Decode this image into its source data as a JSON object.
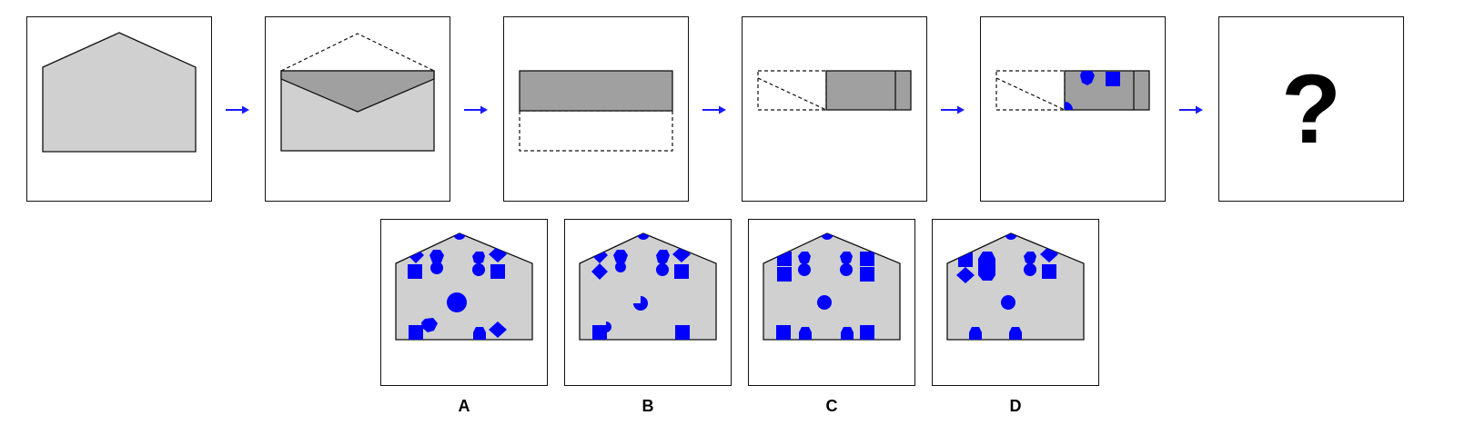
{
  "puzzle": {
    "question_mark": "?",
    "steps": [
      {
        "name": "step-1-unfolded-sheet"
      },
      {
        "name": "step-2-top-flap-folded-down"
      },
      {
        "name": "step-3-bottom-folded-up"
      },
      {
        "name": "step-4-folded-left-to-right"
      },
      {
        "name": "step-5-shapes-punched"
      },
      {
        "name": "step-6-answer"
      }
    ],
    "colors": {
      "paper": "#d0d0d0",
      "folded": "#a0a0a0",
      "punch": "#0000ff",
      "arrow": "#1a1aff"
    }
  },
  "options": [
    {
      "label": "A"
    },
    {
      "label": "B"
    },
    {
      "label": "C"
    },
    {
      "label": "D"
    }
  ]
}
